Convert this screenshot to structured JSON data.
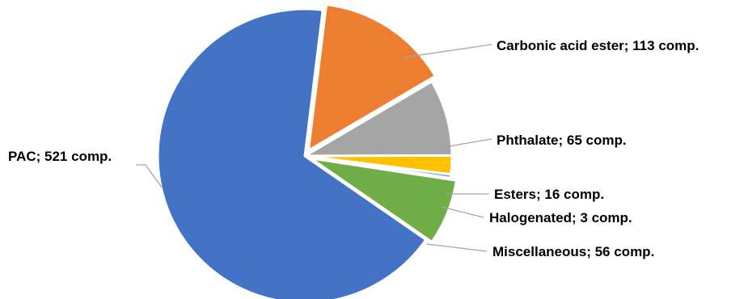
{
  "chart_data": {
    "type": "pie",
    "title": "",
    "slices": [
      {
        "name": "Carbonic acid ester",
        "value": 113,
        "label": "Carbonic acid ester; 113 comp.",
        "color": "#ed7d31"
      },
      {
        "name": "Phthalate",
        "value": 65,
        "label": "Phthalate; 65 comp.",
        "color": "#a5a5a5"
      },
      {
        "name": "Esters",
        "value": 16,
        "label": "Esters; 16 comp.",
        "color": "#ffc000"
      },
      {
        "name": "Halogenated",
        "value": 3,
        "label": "Halogenated; 3 comp.",
        "color": "#5b9bd5"
      },
      {
        "name": "Miscellaneous",
        "value": 56,
        "label": "Miscellaneous; 56 comp.",
        "color": "#70ad47"
      },
      {
        "name": "PAC",
        "value": 521,
        "label": "PAC; 521 comp.",
        "color": "#4472c4"
      }
    ],
    "legend": "none",
    "exploded": [
      "Carbonic acid ester",
      "Miscellaneous"
    ]
  }
}
